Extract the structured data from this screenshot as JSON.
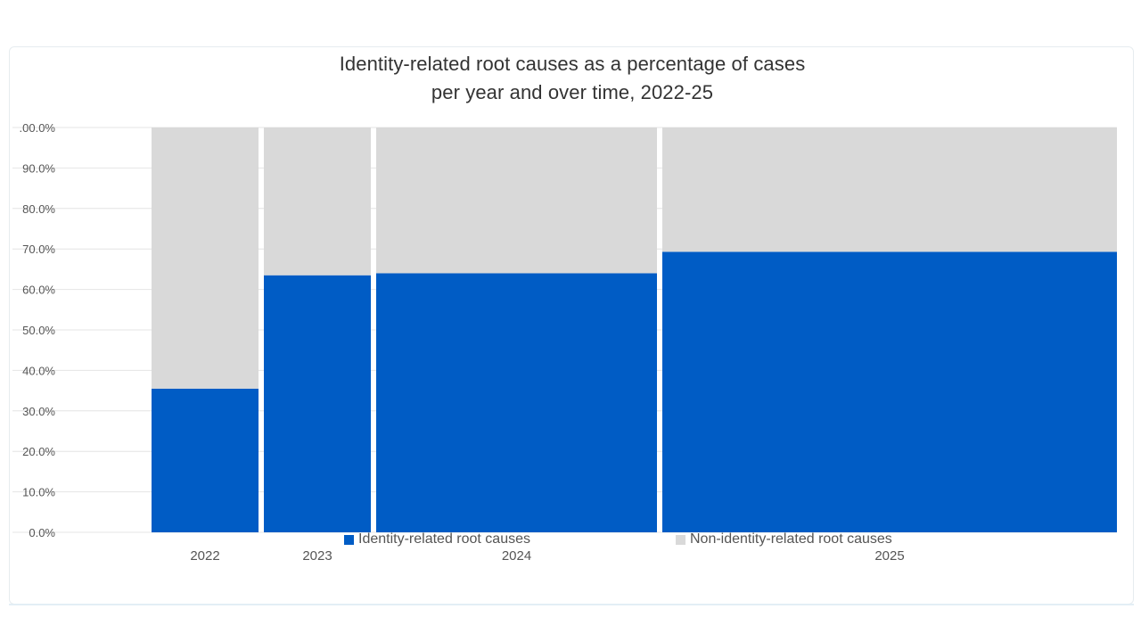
{
  "chart_data": {
    "type": "bar",
    "variant": "marimekko-100-percent-stacked",
    "title_line1": "Identity-related root causes as a percentage of cases",
    "title_line2": "per year and over time, 2022-25",
    "categories": [
      "2022",
      "2023",
      "2024",
      "2025"
    ],
    "series": [
      {
        "name": "Identity-related root causes",
        "color": "#005cc5",
        "values": [
          35.5,
          63.5,
          64.0,
          69.3
        ]
      },
      {
        "name": "Non-identity-related root causes",
        "color": "#d9d9d9",
        "values": [
          64.5,
          36.5,
          36.0,
          30.7
        ]
      }
    ],
    "relative_case_volume": [
      4,
      4,
      10.5,
      17
    ],
    "ylim": [
      0,
      100
    ],
    "yticks": [
      0,
      10,
      20,
      30,
      40,
      50,
      60,
      70,
      80,
      90,
      100
    ],
    "ytick_labels": [
      ".00.0%",
      "90.0%",
      "80.0%",
      "70.0%",
      "60.0%",
      "50.0%",
      "40.0%",
      "30.0%",
      "20.0%",
      "10.0%",
      "0.0%"
    ],
    "legend_position": "bottom",
    "grid": true
  }
}
